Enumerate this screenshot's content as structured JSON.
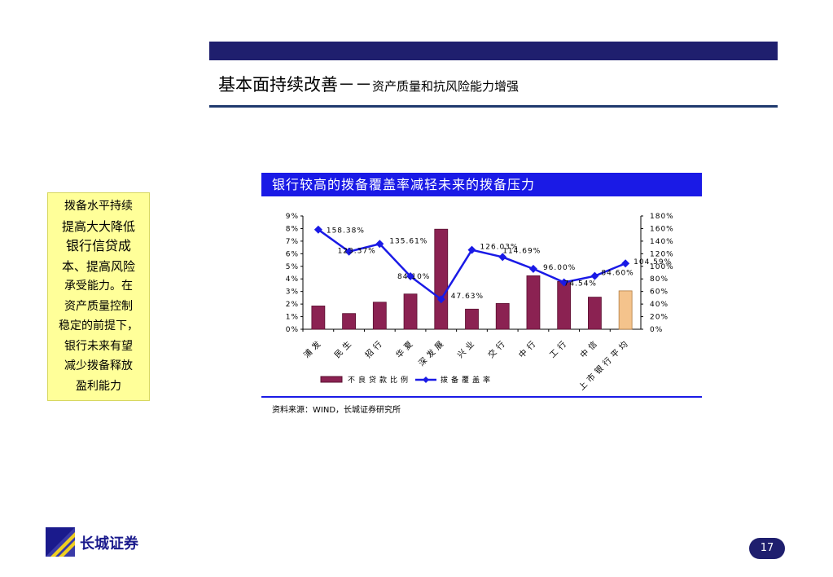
{
  "header": {
    "title_main": "基本面持续改善－－",
    "title_sub": "资产质量和抗风险能力增强"
  },
  "side_note": [
    "拨备水平持续",
    "提高大大降低",
    "银行信贷成",
    "本、提高风险",
    "承受能力。在",
    "资产质量控制",
    "稳定的前提下，",
    "银行未来有望",
    "减少拨备释放",
    "盈利能力"
  ],
  "chart_title": "银行较高的拨备覆盖率减轻未来的拨备压力",
  "source": "资料来源：WIND，长城证券研究所",
  "footer": {
    "logo_text": "长城证券",
    "page_number": "17"
  },
  "colors": {
    "header_bar": "#1f1f6e",
    "chart_header": "#1a1ae6",
    "bar": "#8b2252",
    "bar_highlight": "#f4c38c",
    "line": "#1a1ae6",
    "side_box": "#ffff99"
  },
  "chart_data": {
    "type": "bar",
    "categories": [
      "浦发",
      "民生",
      "招行",
      "华夏",
      "深发展",
      "兴业",
      "交行",
      "中行",
      "工行",
      "中信",
      "上市银行平均"
    ],
    "series": [
      {
        "name": "不良贷款比例",
        "type": "bar",
        "axis": "left",
        "values": [
          1.85,
          1.25,
          2.15,
          2.8,
          7.95,
          1.6,
          2.05,
          4.25,
          3.8,
          2.55,
          3.05
        ]
      },
      {
        "name": "拨备覆盖率",
        "type": "line",
        "axis": "right",
        "values": [
          158.38,
          123.37,
          135.61,
          84.1,
          47.63,
          126.03,
          114.69,
          96.0,
          74.54,
          84.6,
          104.59
        ],
        "labels": [
          "158.38%",
          "123.37%",
          "135.61%",
          "84.10%",
          "47.63%",
          "126.03%",
          "114.69%",
          "96.00%",
          "74.54%",
          "84.60%",
          "104.59%"
        ]
      }
    ],
    "highlight_index": 10,
    "y_left": {
      "min": 0,
      "max": 9,
      "ticks": [
        "0%",
        "1%",
        "2%",
        "3%",
        "4%",
        "5%",
        "6%",
        "7%",
        "8%",
        "9%"
      ]
    },
    "y_right": {
      "min": 0,
      "max": 180,
      "ticks": [
        "0%",
        "20%",
        "40%",
        "60%",
        "80%",
        "100%",
        "120%",
        "140%",
        "160%",
        "180%"
      ]
    },
    "legend": [
      "不良贷款比例",
      "拨备覆盖率"
    ],
    "legend_position": "bottom",
    "grid": false
  }
}
